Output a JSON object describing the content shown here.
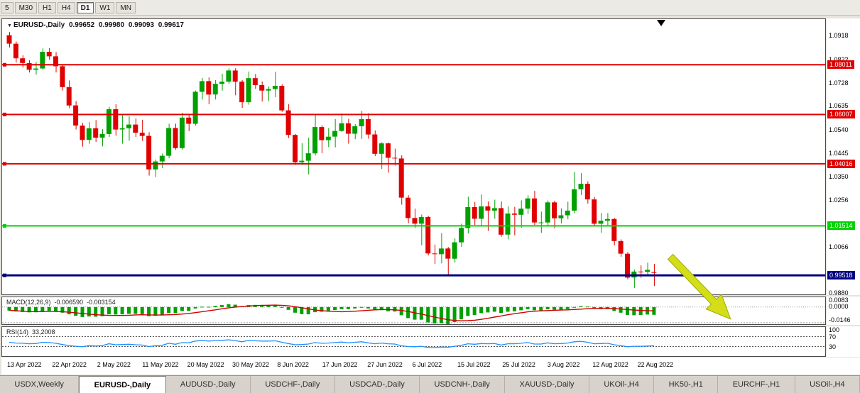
{
  "toolbar": {
    "timeframes": [
      {
        "label": "5",
        "active": false
      },
      {
        "label": "M30",
        "active": false
      },
      {
        "label": "H1",
        "active": false
      },
      {
        "label": "H4",
        "active": false
      },
      {
        "label": "D1",
        "active": true
      },
      {
        "label": "W1",
        "active": false
      },
      {
        "label": "MN",
        "active": false
      }
    ]
  },
  "chart": {
    "title": {
      "symbol": "EURUSD-,Daily",
      "open": "0.99652",
      "high": "0.99980",
      "low": "0.99093",
      "close": "0.99617"
    },
    "price_axis": {
      "labels": [
        "1.0918",
        "1.0822",
        "1.0728",
        "1.0635",
        "1.0540",
        "1.0445",
        "1.0350",
        "1.0256",
        "1.0066",
        "0.9880"
      ]
    },
    "hlines": [
      {
        "price": 1.08011,
        "label": "1.08011",
        "color": "#E00000",
        "width": 2
      },
      {
        "price": 1.06007,
        "label": "1.06007",
        "color": "#E00000",
        "width": 2
      },
      {
        "price": 1.04016,
        "label": "1.04016",
        "color": "#E00000",
        "width": 2
      },
      {
        "price": 1.01514,
        "label": "1.01514",
        "color": "#00D300",
        "width": 2
      },
      {
        "price": 0.99518,
        "label": "0.99518",
        "color": "#000080",
        "width": 3
      }
    ]
  },
  "chart_data": {
    "type": "candlestick",
    "symbol": "EURUSD-,Daily",
    "price_axis_range": [
      0.9875,
      1.0985
    ],
    "dates": [
      "13 Apr 2022",
      "22 Apr 2022",
      "2 May 2022",
      "11 May 2022",
      "20 May 2022",
      "30 May 2022",
      "8 Jun 2022",
      "17 Jun 2022",
      "27 Jun 2022",
      "6 Jul 2022",
      "15 Jul 2022",
      "25 Jul 2022",
      "3 Aug 2022",
      "12 Aug 2022",
      "22 Aug 2022"
    ],
    "candles": [
      [
        1.092,
        1.0933,
        1.0871,
        1.0886
      ],
      [
        1.0886,
        1.0895,
        1.081,
        1.0827
      ],
      [
        1.0827,
        1.0839,
        1.079,
        1.0808
      ],
      [
        1.0808,
        1.082,
        1.077,
        1.0781
      ],
      [
        1.0781,
        1.0812,
        1.0761,
        1.0786
      ],
      [
        1.0786,
        1.0867,
        1.0781,
        1.0853
      ],
      [
        1.0853,
        1.0868,
        1.0822,
        1.0835
      ],
      [
        1.0835,
        1.0852,
        1.077,
        1.0795
      ],
      [
        1.0795,
        1.0801,
        1.0697,
        1.0711
      ],
      [
        1.0711,
        1.0738,
        1.0626,
        1.0637
      ],
      [
        1.0637,
        1.0655,
        1.054,
        1.0556
      ],
      [
        1.0556,
        1.0567,
        1.0471,
        1.0498
      ],
      [
        1.0498,
        1.057,
        1.0482,
        1.0545
      ],
      [
        1.0545,
        1.0578,
        1.049,
        1.0507
      ],
      [
        1.0507,
        1.0541,
        1.0472,
        1.0522
      ],
      [
        1.0522,
        1.0632,
        1.051,
        1.0622
      ],
      [
        1.0622,
        1.0642,
        1.0515,
        1.054
      ],
      [
        1.054,
        1.0599,
        1.0483,
        1.0545
      ],
      [
        1.0545,
        1.0593,
        1.0495,
        1.056
      ],
      [
        1.056,
        1.0585,
        1.051,
        1.0527
      ],
      [
        1.0527,
        1.0579,
        1.0494,
        1.0514
      ],
      [
        1.0514,
        1.0529,
        1.0354,
        1.0379
      ],
      [
        1.0379,
        1.0419,
        1.0348,
        1.0411
      ],
      [
        1.0411,
        1.0443,
        1.0384,
        1.0434
      ],
      [
        1.0434,
        1.0563,
        1.0424,
        1.0546
      ],
      [
        1.0546,
        1.0564,
        1.0459,
        1.0465
      ],
      [
        1.0465,
        1.0607,
        1.0459,
        1.0588
      ],
      [
        1.0588,
        1.0598,
        1.0533,
        1.0563
      ],
      [
        1.0563,
        1.0697,
        1.0556,
        1.0692
      ],
      [
        1.0692,
        1.0748,
        1.0661,
        1.0735
      ],
      [
        1.0735,
        1.075,
        1.0642,
        1.0681
      ],
      [
        1.0681,
        1.0739,
        1.0661,
        1.0724
      ],
      [
        1.0724,
        1.0765,
        1.0697,
        1.0733
      ],
      [
        1.0733,
        1.0787,
        1.0724,
        1.0778
      ],
      [
        1.0778,
        1.0787,
        1.0678,
        1.0733
      ],
      [
        1.0733,
        1.0739,
        1.0627,
        1.065
      ],
      [
        1.065,
        1.0774,
        1.064,
        1.0747
      ],
      [
        1.0747,
        1.0764,
        1.0704,
        1.0719
      ],
      [
        1.0719,
        1.0734,
        1.0653,
        1.0697
      ],
      [
        1.0697,
        1.0714,
        1.0655,
        1.0703
      ],
      [
        1.0703,
        1.0773,
        1.067,
        1.0716
      ],
      [
        1.0716,
        1.0722,
        1.0611,
        1.0617
      ],
      [
        1.0617,
        1.0642,
        1.0505,
        1.0518
      ],
      [
        1.0518,
        1.0522,
        1.0397,
        1.0408
      ],
      [
        1.0408,
        1.0485,
        1.0397,
        1.0414
      ],
      [
        1.0414,
        1.0507,
        1.0359,
        1.0444
      ],
      [
        1.0444,
        1.0601,
        1.0435,
        1.055
      ],
      [
        1.055,
        1.0557,
        1.0444,
        1.0497
      ],
      [
        1.0497,
        1.0546,
        1.0469,
        1.0511
      ],
      [
        1.0511,
        1.0582,
        1.0468,
        1.0534
      ],
      [
        1.0534,
        1.0605,
        1.053,
        1.0565
      ],
      [
        1.0565,
        1.0583,
        1.0483,
        1.0523
      ],
      [
        1.0523,
        1.0562,
        1.0501,
        1.0553
      ],
      [
        1.0553,
        1.0615,
        1.0502,
        1.0582
      ],
      [
        1.0582,
        1.0606,
        1.0503,
        1.052
      ],
      [
        1.052,
        1.0536,
        1.0433,
        1.0442
      ],
      [
        1.0442,
        1.0489,
        1.0381,
        1.0484
      ],
      [
        1.0484,
        1.0488,
        1.0366,
        1.0426
      ],
      [
        1.0426,
        1.0463,
        1.0395,
        1.0423
      ],
      [
        1.0423,
        1.0436,
        1.0237,
        1.0265
      ],
      [
        1.0265,
        1.0275,
        1.0162,
        1.0183
      ],
      [
        1.0183,
        1.0221,
        1.0143,
        1.016
      ],
      [
        1.016,
        1.0197,
        1.0073,
        1.0187
      ],
      [
        1.0187,
        1.0192,
        1.0032,
        1.004
      ],
      [
        1.004,
        1.0076,
        0.9998,
        1.0037
      ],
      [
        1.0037,
        1.0122,
        1.0,
        1.006
      ],
      [
        1.006,
        1.0066,
        0.9952,
        1.0019
      ],
      [
        1.0019,
        1.0101,
        1.0004,
        1.0085
      ],
      [
        1.0085,
        1.016,
        1.0066,
        1.0143
      ],
      [
        1.0143,
        1.0269,
        1.0121,
        1.0227
      ],
      [
        1.0227,
        1.0248,
        1.0155,
        1.018
      ],
      [
        1.018,
        1.0278,
        1.0153,
        1.023
      ],
      [
        1.023,
        1.025,
        1.0131,
        1.0213
      ],
      [
        1.0213,
        1.0257,
        1.018,
        1.0223
      ],
      [
        1.0223,
        1.025,
        1.0108,
        1.0116
      ],
      [
        1.0116,
        1.023,
        1.0097,
        1.0201
      ],
      [
        1.0201,
        1.0228,
        1.0113,
        1.0196
      ],
      [
        1.0196,
        1.0254,
        1.0144,
        1.0221
      ],
      [
        1.0221,
        1.0275,
        1.0199,
        1.0262
      ],
      [
        1.0262,
        1.0293,
        1.0155,
        1.0165
      ],
      [
        1.0165,
        1.0209,
        1.0123,
        1.0165
      ],
      [
        1.0165,
        1.0254,
        1.0152,
        1.0246
      ],
      [
        1.0246,
        1.0253,
        1.0141,
        1.0182
      ],
      [
        1.0182,
        1.0222,
        1.0161,
        1.0194
      ],
      [
        1.0194,
        1.0249,
        1.0178,
        1.0213
      ],
      [
        1.0213,
        1.0369,
        1.0202,
        1.0299
      ],
      [
        1.0299,
        1.0364,
        1.0276,
        1.0321
      ],
      [
        1.0321,
        1.0331,
        1.0241,
        1.0258
      ],
      [
        1.0258,
        1.0268,
        1.0154,
        1.016
      ],
      [
        1.016,
        1.0203,
        1.0124,
        1.0172
      ],
      [
        1.0172,
        1.0203,
        1.0149,
        1.0179
      ],
      [
        1.0179,
        1.0183,
        1.0073,
        1.009
      ],
      [
        1.009,
        1.0097,
        1.0027,
        1.0039
      ],
      [
        1.0039,
        1.0046,
        0.9936,
        0.9943
      ],
      [
        0.9943,
        0.9975,
        0.9901,
        0.9967
      ],
      [
        0.9967,
        0.9992,
        0.9942,
        0.9966
      ],
      [
        0.9966,
        1.0003,
        0.9956,
        0.9974
      ],
      [
        0.99652,
        0.9998,
        0.99093,
        0.99617
      ]
    ],
    "macd": {
      "label": "MACD(12,26,9)",
      "value_text": "-0.006590",
      "signal_text": "-0.003154",
      "range": [
        -0.0146,
        0.0083
      ],
      "axis_labels": [
        "0.0083",
        "0.0000",
        "-0.0146"
      ],
      "values": [
        -0.003,
        -0.0038,
        -0.0042,
        -0.0045,
        -0.0044,
        -0.0036,
        -0.0032,
        -0.0035,
        -0.0048,
        -0.0062,
        -0.0075,
        -0.0085,
        -0.008,
        -0.0082,
        -0.0078,
        -0.0062,
        -0.0064,
        -0.0062,
        -0.0058,
        -0.0058,
        -0.006,
        -0.0078,
        -0.0075,
        -0.007,
        -0.0052,
        -0.0052,
        -0.0034,
        -0.0032,
        -0.0012,
        0.0002,
        0.0002,
        0.001,
        0.0016,
        0.0024,
        0.002,
        0.0006,
        0.0016,
        0.0018,
        0.0014,
        0.0012,
        0.0014,
        -0.0002,
        -0.0024,
        -0.0048,
        -0.006,
        -0.0062,
        -0.0044,
        -0.004,
        -0.0034,
        -0.0026,
        -0.0018,
        -0.0018,
        -0.0012,
        -0.0006,
        -0.0012,
        -0.0026,
        -0.0026,
        -0.0036,
        -0.0038,
        -0.007,
        -0.0094,
        -0.0107,
        -0.0108,
        -0.013,
        -0.014,
        -0.0138,
        -0.0146,
        -0.0128,
        -0.0105,
        -0.0076,
        -0.0068,
        -0.0052,
        -0.0046,
        -0.004,
        -0.005,
        -0.004,
        -0.0036,
        -0.0028,
        -0.0018,
        -0.0028,
        -0.003,
        -0.002,
        -0.0024,
        -0.0022,
        -0.0018,
        -0.0002,
        0.0008,
        0.0004,
        -0.0012,
        -0.0018,
        -0.0018,
        -0.0034,
        -0.0048,
        -0.0068,
        -0.007,
        -0.0068,
        -0.0064,
        -0.0066
      ],
      "signal": [
        -0.0028,
        -0.0032,
        -0.0036,
        -0.0039,
        -0.004,
        -0.0039,
        -0.0038,
        -0.0038,
        -0.004,
        -0.0044,
        -0.0049,
        -0.0055,
        -0.006,
        -0.0065,
        -0.0069,
        -0.0071,
        -0.0072,
        -0.0072,
        -0.007,
        -0.0067,
        -0.0066,
        -0.0067,
        -0.0068,
        -0.0068,
        -0.0066,
        -0.0064,
        -0.006,
        -0.0055,
        -0.0048,
        -0.004,
        -0.0032,
        -0.0024,
        -0.0015,
        -0.0007,
        -0.0001,
        0.0004,
        0.0009,
        0.0012,
        0.0014,
        0.0015,
        0.0016,
        0.0014,
        0.001,
        0.0003,
        -0.0006,
        -0.0016,
        -0.0025,
        -0.0031,
        -0.0036,
        -0.0038,
        -0.004,
        -0.0039,
        -0.0036,
        -0.0032,
        -0.0028,
        -0.0024,
        -0.0022,
        -0.0022,
        -0.0024,
        -0.0029,
        -0.0038,
        -0.0049,
        -0.006,
        -0.0073,
        -0.0086,
        -0.0098,
        -0.0108,
        -0.0114,
        -0.0117,
        -0.0116,
        -0.0112,
        -0.0105,
        -0.0096,
        -0.0086,
        -0.0076,
        -0.0066,
        -0.0057,
        -0.0049,
        -0.0041,
        -0.0036,
        -0.0033,
        -0.003,
        -0.0028,
        -0.0026,
        -0.0024,
        -0.0021,
        -0.0018,
        -0.0014,
        -0.0012,
        -0.0011,
        -0.0011,
        -0.0013,
        -0.0017,
        -0.0022,
        -0.0026,
        -0.0029,
        -0.0031,
        -0.0032
      ]
    },
    "rsi": {
      "label": "RSI(14)",
      "value_text": "33,2008",
      "range": [
        0,
        100
      ],
      "levels": [
        70,
        30
      ],
      "axis_labels": [
        "100",
        "70",
        "30"
      ],
      "values": [
        47,
        44,
        43,
        41,
        42,
        47,
        46,
        43,
        38,
        34,
        31,
        29,
        34,
        32,
        34,
        41,
        37,
        38,
        39,
        37,
        36,
        30,
        33,
        35,
        43,
        39,
        46,
        45,
        52,
        55,
        52,
        54,
        55,
        57,
        54,
        49,
        55,
        53,
        52,
        52,
        53,
        47,
        42,
        37,
        38,
        40,
        46,
        43,
        44,
        46,
        48,
        45,
        47,
        49,
        45,
        41,
        44,
        41,
        40,
        33,
        30,
        29,
        31,
        26,
        26,
        28,
        27,
        31,
        35,
        41,
        39,
        42,
        41,
        42,
        36,
        41,
        41,
        43,
        46,
        40,
        40,
        45,
        41,
        42,
        44,
        49,
        51,
        47,
        41,
        42,
        43,
        37,
        34,
        29,
        31,
        31,
        32,
        33.2
      ]
    }
  },
  "annotations": {
    "arrow_color": "#D3DE17"
  },
  "colors": {
    "candle_up": "#00A000",
    "candle_down": "#E00000",
    "macd_bar": "#00A000",
    "macd_signal": "#D00000",
    "rsi_line": "#1E90FF"
  },
  "tabs": [
    {
      "label": "USDX,Weekly",
      "active": false
    },
    {
      "label": "EURUSD-,Daily",
      "active": true
    },
    {
      "label": "AUDUSD-,Daily",
      "active": false
    },
    {
      "label": "USDCHF-,Daily",
      "active": false
    },
    {
      "label": "USDCAD-,Daily",
      "active": false
    },
    {
      "label": "USDCNH-,Daily",
      "active": false
    },
    {
      "label": "XAUUSD-,Daily",
      "active": false
    },
    {
      "label": "UKOil-,H4",
      "active": false
    },
    {
      "label": "HK50-,H1",
      "active": false
    },
    {
      "label": "EURCHF-,H1",
      "active": false
    },
    {
      "label": "USOil-,H4",
      "active": false
    }
  ]
}
